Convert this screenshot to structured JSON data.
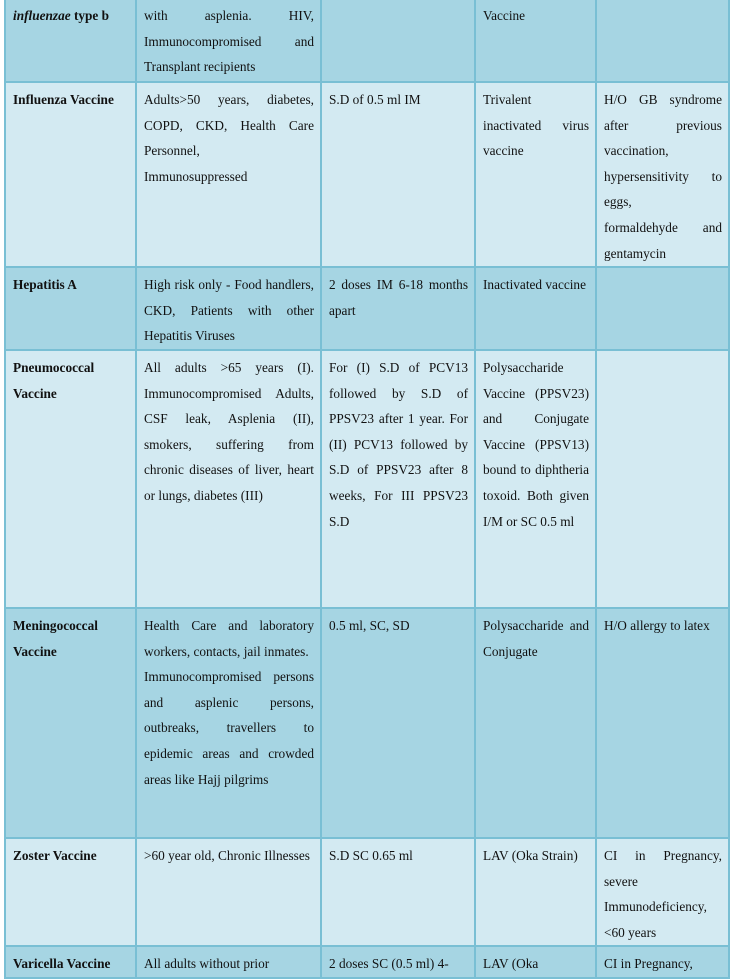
{
  "colors": {
    "dark_row": "#a6d5e3",
    "light_row": "#d3eaf2",
    "border": "#79bfd4"
  },
  "rows": [
    {
      "name_italic": "influenzae",
      "name": " type b",
      "indication": "with asplenia. HIV, Immunocompromised and Transplant recipients",
      "dose": "",
      "type": "Vaccine",
      "contra": ""
    },
    {
      "name": "Influenza Vaccine",
      "indication": "Adults>50 years, diabetes, COPD, CKD, Health Care Personnel,\nImmunosuppressed",
      "dose": "S.D of 0.5 ml IM",
      "type": "Trivalent inactivated virus vaccine",
      "contra": "H/O GB syndrome after previous vaccination, hypersensitivity to eggs,\nformaldehyde and gentamycin"
    },
    {
      "name": "Hepatitis A",
      "indication": "High risk only - Food handlers, CKD, Patients with other Hepatitis Viruses",
      "dose": "2 doses IM 6-18 months apart",
      "type": "Inactivated vaccine",
      "contra": ""
    },
    {
      "name": "Pneumococcal Vaccine",
      "indication": "All adults >65 years (I). Immunocompromised Adults, CSF leak, Asplenia (II), smokers, suffering from chronic diseases of liver, heart or lungs, diabetes (III)",
      "dose": "For (I) S.D of PCV13 followed by S.D of PPSV23 after 1 year. For (II) PCV13 followed by S.D of PPSV23 after 8 weeks, For III PPSV23 S.D",
      "type": "Polysaccharide Vaccine (PPSV23) and Conjugate Vaccine (PPSV13) bound to diphtheria toxoid. Both given I/M or SC 0.5 ml",
      "contra": ""
    },
    {
      "name": "Meningococcal Vaccine",
      "indication": "Health Care and laboratory workers, contacts, jail inmates.\nImmunocompromised persons and asplenic persons, outbreaks, travellers to epidemic areas and crowded areas like Hajj pilgrims",
      "dose": "0.5 ml, SC, SD",
      "type": "Polysaccharide and Conjugate",
      "contra": "H/O allergy to latex"
    },
    {
      "name": "Zoster Vaccine",
      "indication": ">60 year old, Chronic Illnesses",
      "dose": "S.D SC 0.65 ml",
      "type": "LAV (Oka Strain)",
      "contra": "CI in Pregnancy, severe Immunodeficiency, <60 years"
    },
    {
      "name": "Varicella Vaccine",
      "indication": "All adults without prior",
      "dose": "2 doses SC (0.5 ml) 4-",
      "type": "LAV (Oka",
      "contra": "CI in Pregnancy,"
    }
  ]
}
